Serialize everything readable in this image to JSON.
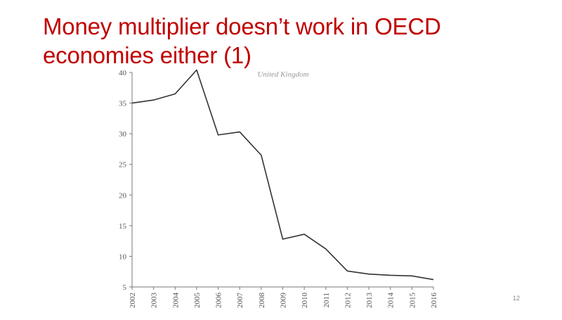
{
  "slide": {
    "title_line1": "Money multiplier doesn’t work in OECD",
    "title_line2": "economies either (1)",
    "page_number": "12"
  },
  "colors": {
    "title": "#c00000",
    "line": "#333333",
    "axis": "#777777",
    "tick_label": "#555555",
    "annotation": "#999999"
  },
  "chart_data": {
    "type": "line",
    "title": "",
    "annotation": "United Kingdom",
    "xlabel": "",
    "ylabel": "",
    "x": [
      "2002",
      "2003",
      "2004",
      "2005",
      "2006",
      "2007",
      "2008",
      "2009",
      "2010",
      "2011",
      "2012",
      "2013",
      "2014",
      "2015",
      "2016"
    ],
    "series": [
      {
        "values": [
          35.0,
          35.5,
          36.5,
          40.4,
          29.8,
          30.3,
          26.5,
          12.8,
          13.6,
          11.2,
          7.6,
          7.1,
          6.9,
          6.8,
          6.2
        ]
      }
    ],
    "ylim": [
      5,
      40
    ],
    "yticks": [
      5,
      10,
      15,
      20,
      25,
      30,
      35,
      40
    ],
    "grid": false,
    "legend": "none"
  }
}
